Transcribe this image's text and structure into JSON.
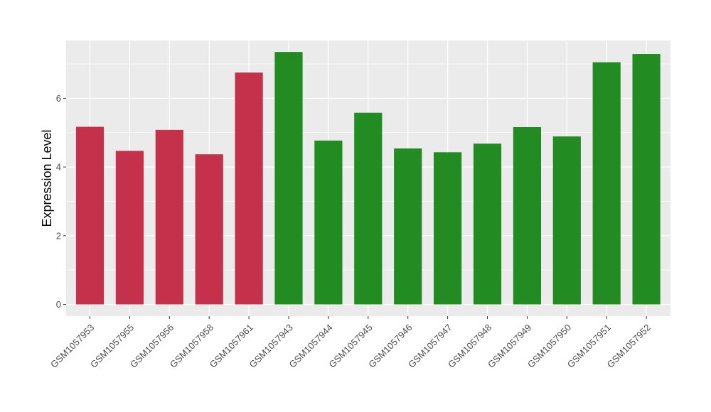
{
  "chart_data": {
    "type": "bar",
    "title": "",
    "xlabel": "",
    "ylabel": "Expression Level",
    "ylim": [
      0,
      7.75
    ],
    "yticks": [
      0,
      2,
      4,
      6
    ],
    "grid": true,
    "categories": [
      "GSM1057953",
      "GSM1057955",
      "GSM1057956",
      "GSM1057958",
      "GSM1057961",
      "GSM1057943",
      "GSM1057944",
      "GSM1057945",
      "GSM1057946",
      "GSM1057947",
      "GSM1057948",
      "GSM1057949",
      "GSM1057950",
      "GSM1057951",
      "GSM1057952"
    ],
    "values": [
      5.17,
      4.47,
      5.08,
      4.37,
      6.75,
      7.35,
      4.77,
      5.58,
      4.54,
      4.43,
      4.68,
      5.16,
      4.89,
      7.05,
      7.29
    ],
    "colors": [
      "#c5314a",
      "#c5314a",
      "#c5314a",
      "#c5314a",
      "#c5314a",
      "#228b22",
      "#228b22",
      "#228b22",
      "#228b22",
      "#228b22",
      "#228b22",
      "#228b22",
      "#228b22",
      "#228b22",
      "#228b22"
    ],
    "panel_color": "#ebebeb",
    "gridline_color": "#ffffff"
  }
}
